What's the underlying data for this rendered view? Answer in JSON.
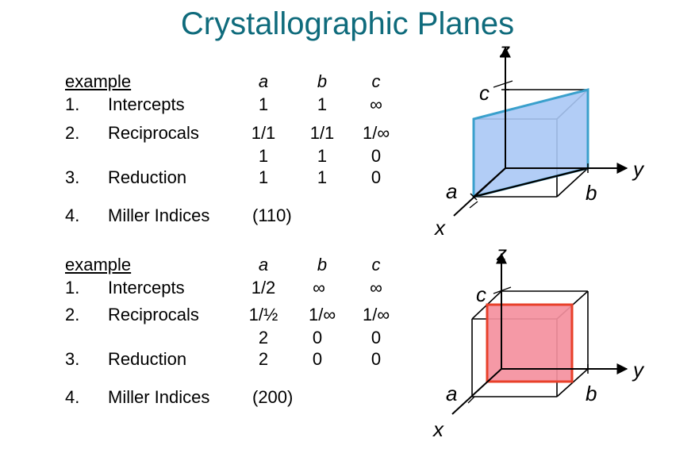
{
  "title": "Crystallographic Planes",
  "examples": [
    {
      "header": "example",
      "cols": [
        "a",
        "b",
        "c"
      ],
      "rows": [
        {
          "num": "1.",
          "label": "Intercepts",
          "values": [
            "1",
            "1",
            "∞"
          ]
        },
        {
          "num": "2.",
          "label": "Reciprocals",
          "values": [
            "1/1",
            "1/1",
            "1/∞"
          ]
        },
        {
          "num": "",
          "label": "",
          "values": [
            "1",
            "1",
            "0"
          ]
        },
        {
          "num": "3.",
          "label": "Reduction",
          "values": [
            "1",
            "1",
            "0"
          ]
        }
      ],
      "miller": {
        "num": "4.",
        "label": "Miller Indices",
        "value": "(110)"
      },
      "diagram": {
        "plane_color": "#aac8f5",
        "plane_edge": "#3aa0cc",
        "axis_labels": [
          "z",
          "y",
          "x"
        ],
        "edge_labels": [
          "a",
          "b",
          "c"
        ]
      }
    },
    {
      "header": "example",
      "cols": [
        "a",
        "b",
        "c"
      ],
      "rows": [
        {
          "num": "1.",
          "label": "Intercepts",
          "values": [
            "1/2",
            "∞",
            "∞"
          ]
        },
        {
          "num": "2.",
          "label": "Reciprocals",
          "values": [
            "1/½",
            "1/∞",
            "1/∞"
          ]
        },
        {
          "num": "",
          "label": "",
          "values": [
            "2",
            "0",
            "0"
          ]
        },
        {
          "num": "3.",
          "label": "Reduction",
          "values": [
            "2",
            "0",
            "0"
          ]
        }
      ],
      "miller": {
        "num": "4.",
        "label": "Miller Indices",
        "value": "(200)"
      },
      "diagram": {
        "plane_color": "#f4909e",
        "plane_edge": "#e8402a",
        "axis_labels": [
          "z",
          "y",
          "x"
        ],
        "edge_labels": [
          "a",
          "b",
          "c"
        ]
      }
    }
  ]
}
